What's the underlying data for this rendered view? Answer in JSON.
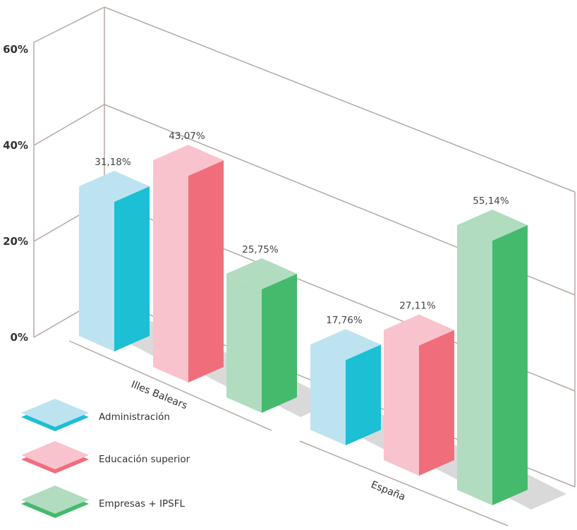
{
  "chart_data": {
    "type": "bar",
    "style": "3d-perspective",
    "categories": [
      "Illes Balears",
      "España"
    ],
    "series": [
      {
        "name": "Administración",
        "values": [
          31.18,
          17.76
        ],
        "color_front": "#bde3f1",
        "color_side": "#1cbfd3"
      },
      {
        "name": "Educación superior",
        "values": [
          43.07,
          27.11
        ],
        "color_front": "#f8c3cd",
        "color_side": "#f06e7c"
      },
      {
        "name": "Empresas + IPSFL",
        "values": [
          25.75,
          55.14
        ],
        "color_front": "#b1dcbf",
        "color_side": "#45ba6c"
      }
    ],
    "data_labels": [
      [
        "31,18%",
        "17,76%"
      ],
      [
        "43,07%",
        "27,11%"
      ],
      [
        "25,75%",
        "55,14%"
      ]
    ],
    "y_ticks": [
      "0%",
      "20%",
      "40%",
      "60%"
    ],
    "y_tick_values": [
      0,
      20,
      40,
      60
    ],
    "ylim": [
      0,
      60
    ],
    "grid": true,
    "legend_position": "bottom-left",
    "title": "",
    "xlabel": "",
    "ylabel": ""
  }
}
